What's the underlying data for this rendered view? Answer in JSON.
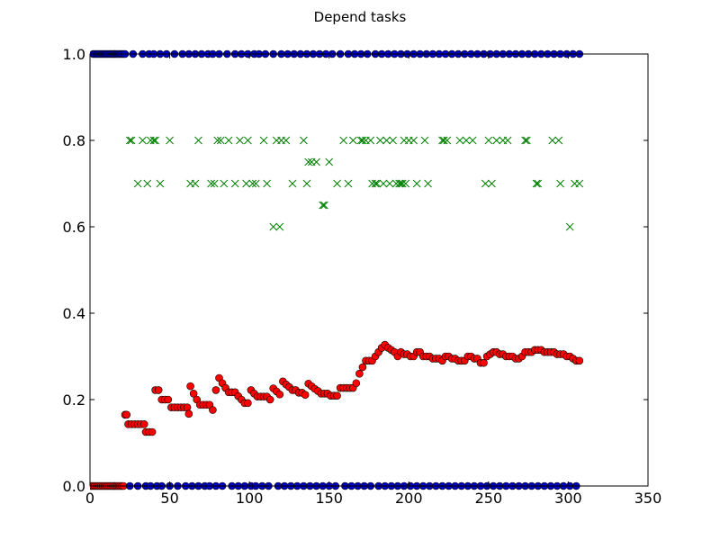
{
  "chart_data": {
    "type": "scatter",
    "title": "Depend tasks",
    "xlabel": "",
    "ylabel": "",
    "xlim": [
      0,
      350
    ],
    "ylim": [
      0,
      1.0
    ],
    "xticks": [
      0,
      50,
      100,
      150,
      200,
      250,
      300,
      350
    ],
    "yticks": [
      0.0,
      0.2,
      0.4,
      0.6,
      0.8,
      1.0
    ],
    "xtick_labels": [
      "0",
      "50",
      "100",
      "150",
      "200",
      "250",
      "300",
      "350"
    ],
    "ytick_labels": [
      "0.0",
      "0.2",
      "0.4",
      "0.6",
      "0.8",
      "1.0"
    ],
    "grid": false,
    "series": [
      {
        "marker": "x",
        "color": "#008000",
        "x": [
          25,
          26,
          30,
          33,
          36,
          38,
          40,
          41,
          44,
          50,
          63,
          66,
          68,
          76,
          78,
          80,
          82,
          84,
          87,
          91,
          94,
          98,
          99,
          102,
          104,
          109,
          111,
          115,
          117,
          119,
          120,
          123,
          127,
          134,
          136,
          137,
          139,
          142,
          146,
          147,
          150,
          155,
          159,
          162,
          165,
          170,
          171,
          173,
          176,
          177,
          179,
          180,
          182,
          184,
          186,
          188,
          190,
          192,
          194,
          195,
          196,
          197,
          198,
          200,
          203,
          205,
          210,
          212,
          221,
          222,
          224,
          232,
          236,
          240,
          248,
          250,
          252,
          255,
          259,
          262,
          273,
          274,
          280,
          281,
          290,
          294,
          295,
          301,
          304,
          307
        ],
        "y": [
          0.8,
          0.8,
          0.7,
          0.8,
          0.7,
          0.8,
          0.8,
          0.8,
          0.7,
          0.8,
          0.7,
          0.7,
          0.8,
          0.7,
          0.7,
          0.8,
          0.8,
          0.7,
          0.8,
          0.7,
          0.8,
          0.7,
          0.8,
          0.7,
          0.7,
          0.8,
          0.7,
          0.6,
          0.8,
          0.6,
          0.8,
          0.8,
          0.7,
          0.8,
          0.7,
          0.75,
          0.75,
          0.75,
          0.65,
          0.65,
          0.75,
          0.7,
          0.8,
          0.7,
          0.8,
          0.8,
          0.8,
          0.8,
          0.8,
          0.7,
          0.7,
          0.7,
          0.8,
          0.7,
          0.8,
          0.7,
          0.8,
          0.7,
          0.7,
          0.7,
          0.7,
          0.8,
          0.7,
          0.8,
          0.8,
          0.7,
          0.8,
          0.7,
          0.8,
          0.8,
          0.8,
          0.8,
          0.8,
          0.8,
          0.7,
          0.8,
          0.7,
          0.8,
          0.8,
          0.8,
          0.8,
          0.8,
          0.7,
          0.7,
          0.8,
          0.8,
          0.7,
          0.6,
          0.7,
          0.7
        ]
      },
      {
        "marker": "o",
        "color": "#ff0000",
        "x": [
          0,
          1,
          2,
          3,
          4,
          5,
          6,
          7,
          8,
          9,
          10,
          11,
          12,
          13,
          14,
          15,
          16,
          17,
          18,
          19,
          20,
          21,
          22,
          23,
          24,
          26,
          28,
          30,
          32,
          34,
          35,
          37,
          39,
          41,
          43,
          45,
          47,
          49,
          51,
          53,
          55,
          57,
          59,
          61,
          62,
          63,
          65,
          67,
          69,
          71,
          73,
          75,
          77,
          79,
          81,
          83,
          85,
          87,
          89,
          91,
          93,
          95,
          97,
          99,
          101,
          103,
          105,
          107,
          109,
          111,
          113,
          115,
          117,
          119,
          121,
          123,
          125,
          127,
          129,
          131,
          133,
          135,
          137,
          139,
          141,
          143,
          145,
          147,
          149,
          151,
          153,
          155,
          157,
          159,
          161,
          163,
          165,
          167,
          169,
          171,
          173,
          175,
          177,
          179,
          181,
          183,
          185,
          187,
          189,
          191,
          193,
          195,
          197,
          199,
          201,
          203,
          205,
          207,
          209,
          211,
          213,
          215,
          217,
          219,
          221,
          223,
          225,
          227,
          229,
          231,
          233,
          235,
          237,
          239,
          241,
          243,
          245,
          247,
          249,
          251,
          253,
          255,
          257,
          259,
          261,
          263,
          265,
          267,
          269,
          271,
          273,
          275,
          277,
          279,
          281,
          283,
          285,
          287,
          289,
          291,
          293,
          295,
          297,
          299,
          301,
          303,
          305,
          307
        ],
        "y": [
          0.0,
          0.0,
          0.0,
          0.0,
          0.0,
          0.0,
          0.0,
          0.0,
          0.0,
          0.0,
          0.0,
          0.0,
          0.0,
          0.0,
          0.0,
          0.0,
          0.0,
          0.0,
          0.0,
          0.0,
          0.0,
          0.0,
          0.165,
          0.165,
          0.143,
          0.143,
          0.143,
          0.143,
          0.143,
          0.143,
          0.125,
          0.125,
          0.125,
          0.222,
          0.222,
          0.2,
          0.2,
          0.2,
          0.182,
          0.182,
          0.182,
          0.182,
          0.182,
          0.182,
          0.167,
          0.231,
          0.214,
          0.2,
          0.188,
          0.188,
          0.188,
          0.188,
          0.176,
          0.222,
          0.25,
          0.238,
          0.227,
          0.217,
          0.217,
          0.217,
          0.208,
          0.2,
          0.192,
          0.192,
          0.222,
          0.214,
          0.207,
          0.207,
          0.207,
          0.207,
          0.2,
          0.226,
          0.219,
          0.212,
          0.242,
          0.235,
          0.229,
          0.222,
          0.222,
          0.216,
          0.216,
          0.211,
          0.237,
          0.231,
          0.225,
          0.22,
          0.214,
          0.214,
          0.214,
          0.209,
          0.209,
          0.209,
          0.227,
          0.227,
          0.227,
          0.227,
          0.227,
          0.238,
          0.26,
          0.275,
          0.29,
          0.29,
          0.29,
          0.3,
          0.31,
          0.32,
          0.327,
          0.32,
          0.315,
          0.31,
          0.3,
          0.31,
          0.305,
          0.305,
          0.3,
          0.3,
          0.31,
          0.31,
          0.3,
          0.3,
          0.3,
          0.295,
          0.295,
          0.295,
          0.29,
          0.3,
          0.3,
          0.295,
          0.295,
          0.29,
          0.29,
          0.29,
          0.3,
          0.3,
          0.295,
          0.295,
          0.285,
          0.285,
          0.3,
          0.305,
          0.31,
          0.31,
          0.305,
          0.305,
          0.3,
          0.3,
          0.3,
          0.295,
          0.295,
          0.3,
          0.31,
          0.31,
          0.31,
          0.315,
          0.315,
          0.315,
          0.31,
          0.31,
          0.31,
          0.31,
          0.305,
          0.305,
          0.305,
          0.3,
          0.3,
          0.295,
          0.29,
          0.29
        ]
      },
      {
        "marker": "o",
        "color": "#0000bf",
        "x": [
          2,
          3,
          4,
          5,
          6,
          7,
          8,
          9,
          10,
          11,
          12,
          13,
          14,
          15,
          16,
          17,
          18,
          19,
          20,
          21,
          22,
          25,
          27,
          30,
          33,
          35,
          37,
          38,
          40,
          42,
          44,
          45,
          48,
          50,
          53,
          55,
          58,
          60,
          62,
          64,
          66,
          68,
          70,
          72,
          74,
          75,
          77,
          79,
          81,
          83,
          86,
          89,
          91,
          93,
          95,
          97,
          99,
          101,
          103,
          104,
          106,
          108,
          110,
          112,
          115,
          118,
          120,
          122,
          124,
          126,
          128,
          130,
          132,
          134,
          136,
          138,
          140,
          142,
          144,
          146,
          148,
          150,
          152,
          154,
          157,
          160,
          162,
          164,
          166,
          168,
          170,
          172,
          174,
          176,
          179,
          181,
          183,
          185,
          187,
          189,
          191,
          193,
          195,
          197,
          199,
          201,
          203,
          205,
          207,
          209,
          211,
          213,
          215,
          217,
          219,
          221,
          223,
          225,
          227,
          229,
          231,
          233,
          235,
          237,
          239,
          241,
          243,
          245,
          247,
          249,
          251,
          253,
          255,
          257,
          259,
          261,
          263,
          265,
          267,
          269,
          271,
          273,
          275,
          277,
          279,
          281,
          283,
          285,
          287,
          289,
          291,
          293,
          295,
          297,
          299,
          301,
          303,
          305,
          307
        ],
        "y": [
          1,
          1,
          1,
          1,
          1,
          1,
          1,
          1,
          1,
          1,
          1,
          1,
          1,
          1,
          1,
          1,
          1,
          1,
          1,
          1,
          1,
          0,
          1,
          0,
          1,
          0,
          1,
          0,
          1,
          0,
          1,
          0,
          1,
          0,
          1,
          0,
          1,
          0,
          1,
          0,
          1,
          0,
          1,
          0,
          1,
          0,
          1,
          0,
          1,
          0,
          1,
          0,
          1,
          0,
          1,
          0,
          1,
          0,
          1,
          0,
          1,
          0,
          1,
          0,
          1,
          0,
          1,
          0,
          1,
          0,
          1,
          0,
          1,
          0,
          1,
          0,
          1,
          0,
          1,
          0,
          1,
          0,
          1,
          0,
          1,
          0,
          1,
          0,
          1,
          0,
          1,
          0,
          1,
          0,
          1,
          0,
          1,
          0,
          1,
          0,
          1,
          0,
          1,
          0,
          1,
          0,
          1,
          0,
          1,
          0,
          1,
          0,
          1,
          0,
          1,
          0,
          1,
          0,
          1,
          0,
          1,
          0,
          1,
          0,
          1,
          0,
          1,
          0,
          1,
          0,
          1,
          0,
          1,
          0,
          1,
          0,
          1,
          0,
          1,
          0,
          1,
          0,
          1,
          0,
          1,
          0,
          1,
          0,
          1,
          0,
          1,
          0,
          1,
          0,
          1,
          0,
          1,
          0,
          1
        ]
      }
    ]
  }
}
